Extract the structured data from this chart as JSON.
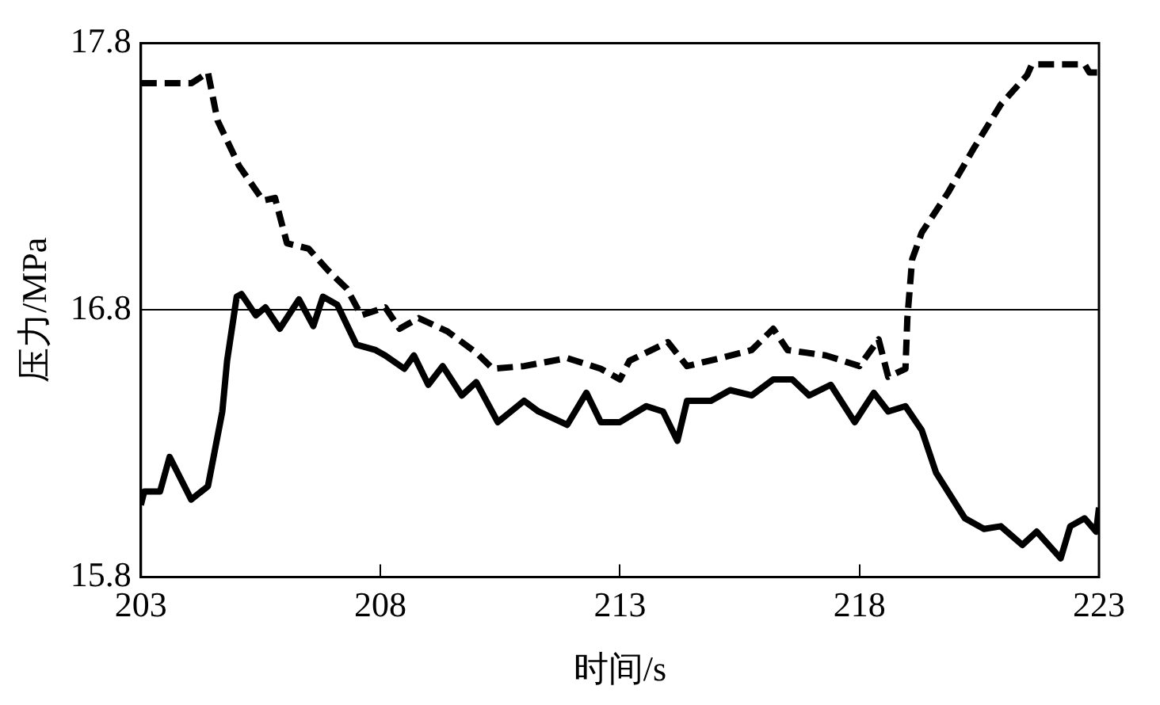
{
  "chart_data": {
    "type": "line",
    "xlabel": "时间/s",
    "ylabel": "压力/MPa",
    "xlim": [
      203,
      223
    ],
    "xticks": [
      203,
      208,
      213,
      218,
      223
    ],
    "ylim": [
      15.8,
      17.8
    ],
    "yticks": [
      15.8,
      16.8,
      17.8
    ],
    "grid": "y",
    "legend": false,
    "marker": "none",
    "series": [
      {
        "color": "#000000",
        "line_style": "dashed",
        "x": [
          203,
          204.06,
          204.4,
          204.6,
          205.05,
          205.55,
          205.8,
          206.05,
          206.5,
          206.9,
          207.3,
          207.6,
          208.1,
          208.4,
          208.8,
          209.4,
          210.0,
          210.35,
          211.0,
          211.9,
          212.6,
          213.0,
          213.2,
          214.0,
          214.4,
          215.1,
          215.75,
          216.2,
          216.5,
          217.3,
          218.0,
          218.4,
          218.6,
          218.96,
          219.0,
          219.1,
          219.3,
          219.85,
          220.4,
          220.95,
          221.5,
          221.6,
          222.7,
          222.8,
          223
        ],
        "values": [
          17.65,
          17.65,
          17.69,
          17.51,
          17.34,
          17.21,
          17.22,
          17.05,
          17.03,
          16.95,
          16.88,
          16.78,
          16.81,
          16.73,
          16.77,
          16.72,
          16.64,
          16.58,
          16.59,
          16.62,
          16.58,
          16.54,
          16.61,
          16.68,
          16.59,
          16.62,
          16.65,
          16.73,
          16.65,
          16.63,
          16.59,
          16.69,
          16.55,
          16.58,
          16.77,
          16.99,
          17.09,
          17.24,
          17.41,
          17.57,
          17.68,
          17.72,
          17.72,
          17.69,
          17.69
        ]
      },
      {
        "color": "#000000",
        "line_style": "solid",
        "x": [
          203,
          203.07,
          203.4,
          203.6,
          204.05,
          204.4,
          204.7,
          204.8,
          205.0,
          205.1,
          205.4,
          205.6,
          205.9,
          206.3,
          206.6,
          206.8,
          207.1,
          207.5,
          207.9,
          208.1,
          208.5,
          208.7,
          209.0,
          209.3,
          209.7,
          210.0,
          210.45,
          211.0,
          211.3,
          211.9,
          212.3,
          212.6,
          213.0,
          213.55,
          213.9,
          214.2,
          214.4,
          214.9,
          215.3,
          215.75,
          216.2,
          216.6,
          216.95,
          217.4,
          217.9,
          218.3,
          218.6,
          218.96,
          219.3,
          219.6,
          220.2,
          220.6,
          220.95,
          221.4,
          221.7,
          222.2,
          222.4,
          222.7,
          222.94,
          223
        ],
        "values": [
          16.07,
          16.12,
          16.12,
          16.25,
          16.09,
          16.14,
          16.42,
          16.61,
          16.85,
          16.86,
          16.78,
          16.81,
          16.73,
          16.84,
          16.74,
          16.85,
          16.82,
          16.67,
          16.65,
          16.63,
          16.58,
          16.63,
          16.52,
          16.59,
          16.48,
          16.53,
          16.38,
          16.46,
          16.42,
          16.37,
          16.49,
          16.38,
          16.38,
          16.44,
          16.42,
          16.31,
          16.46,
          16.46,
          16.5,
          16.48,
          16.54,
          16.54,
          16.48,
          16.52,
          16.38,
          16.49,
          16.42,
          16.44,
          16.35,
          16.19,
          16.02,
          15.98,
          15.99,
          15.92,
          15.97,
          15.87,
          15.99,
          16.02,
          15.97,
          16.06
        ]
      }
    ]
  }
}
